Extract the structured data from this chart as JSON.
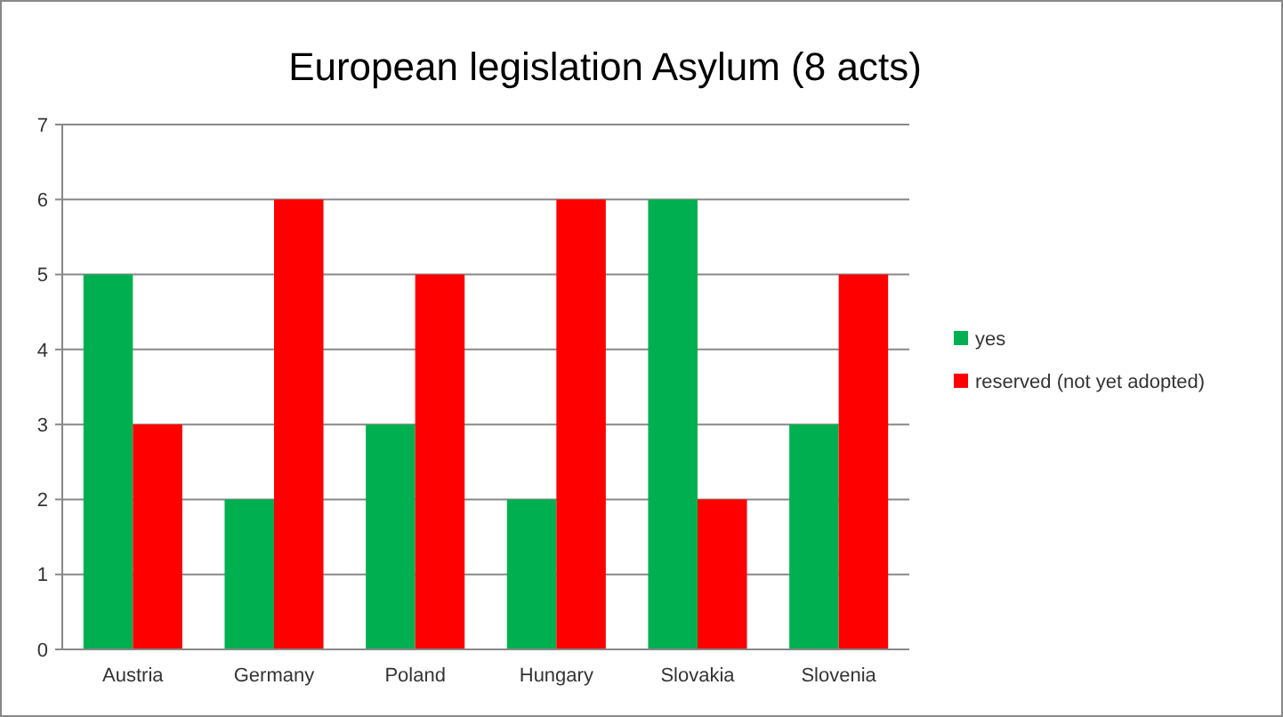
{
  "chart_data": {
    "type": "bar",
    "title": "European legislation Asylum (8 acts)",
    "categories": [
      "Austria",
      "Germany",
      "Poland",
      "Hungary",
      "Slovakia",
      "Slovenia"
    ],
    "series": [
      {
        "name": "yes",
        "color": "#00b050",
        "values": [
          5,
          2,
          3,
          2,
          6,
          3
        ]
      },
      {
        "name": "reserved (not yet adopted)",
        "color": "#ff0000",
        "values": [
          3,
          6,
          5,
          6,
          2,
          5
        ]
      }
    ],
    "ylim": [
      0,
      7
    ],
    "yticks": [
      0,
      1,
      2,
      3,
      4,
      5,
      6,
      7
    ],
    "grid": "y",
    "legend": "right"
  }
}
